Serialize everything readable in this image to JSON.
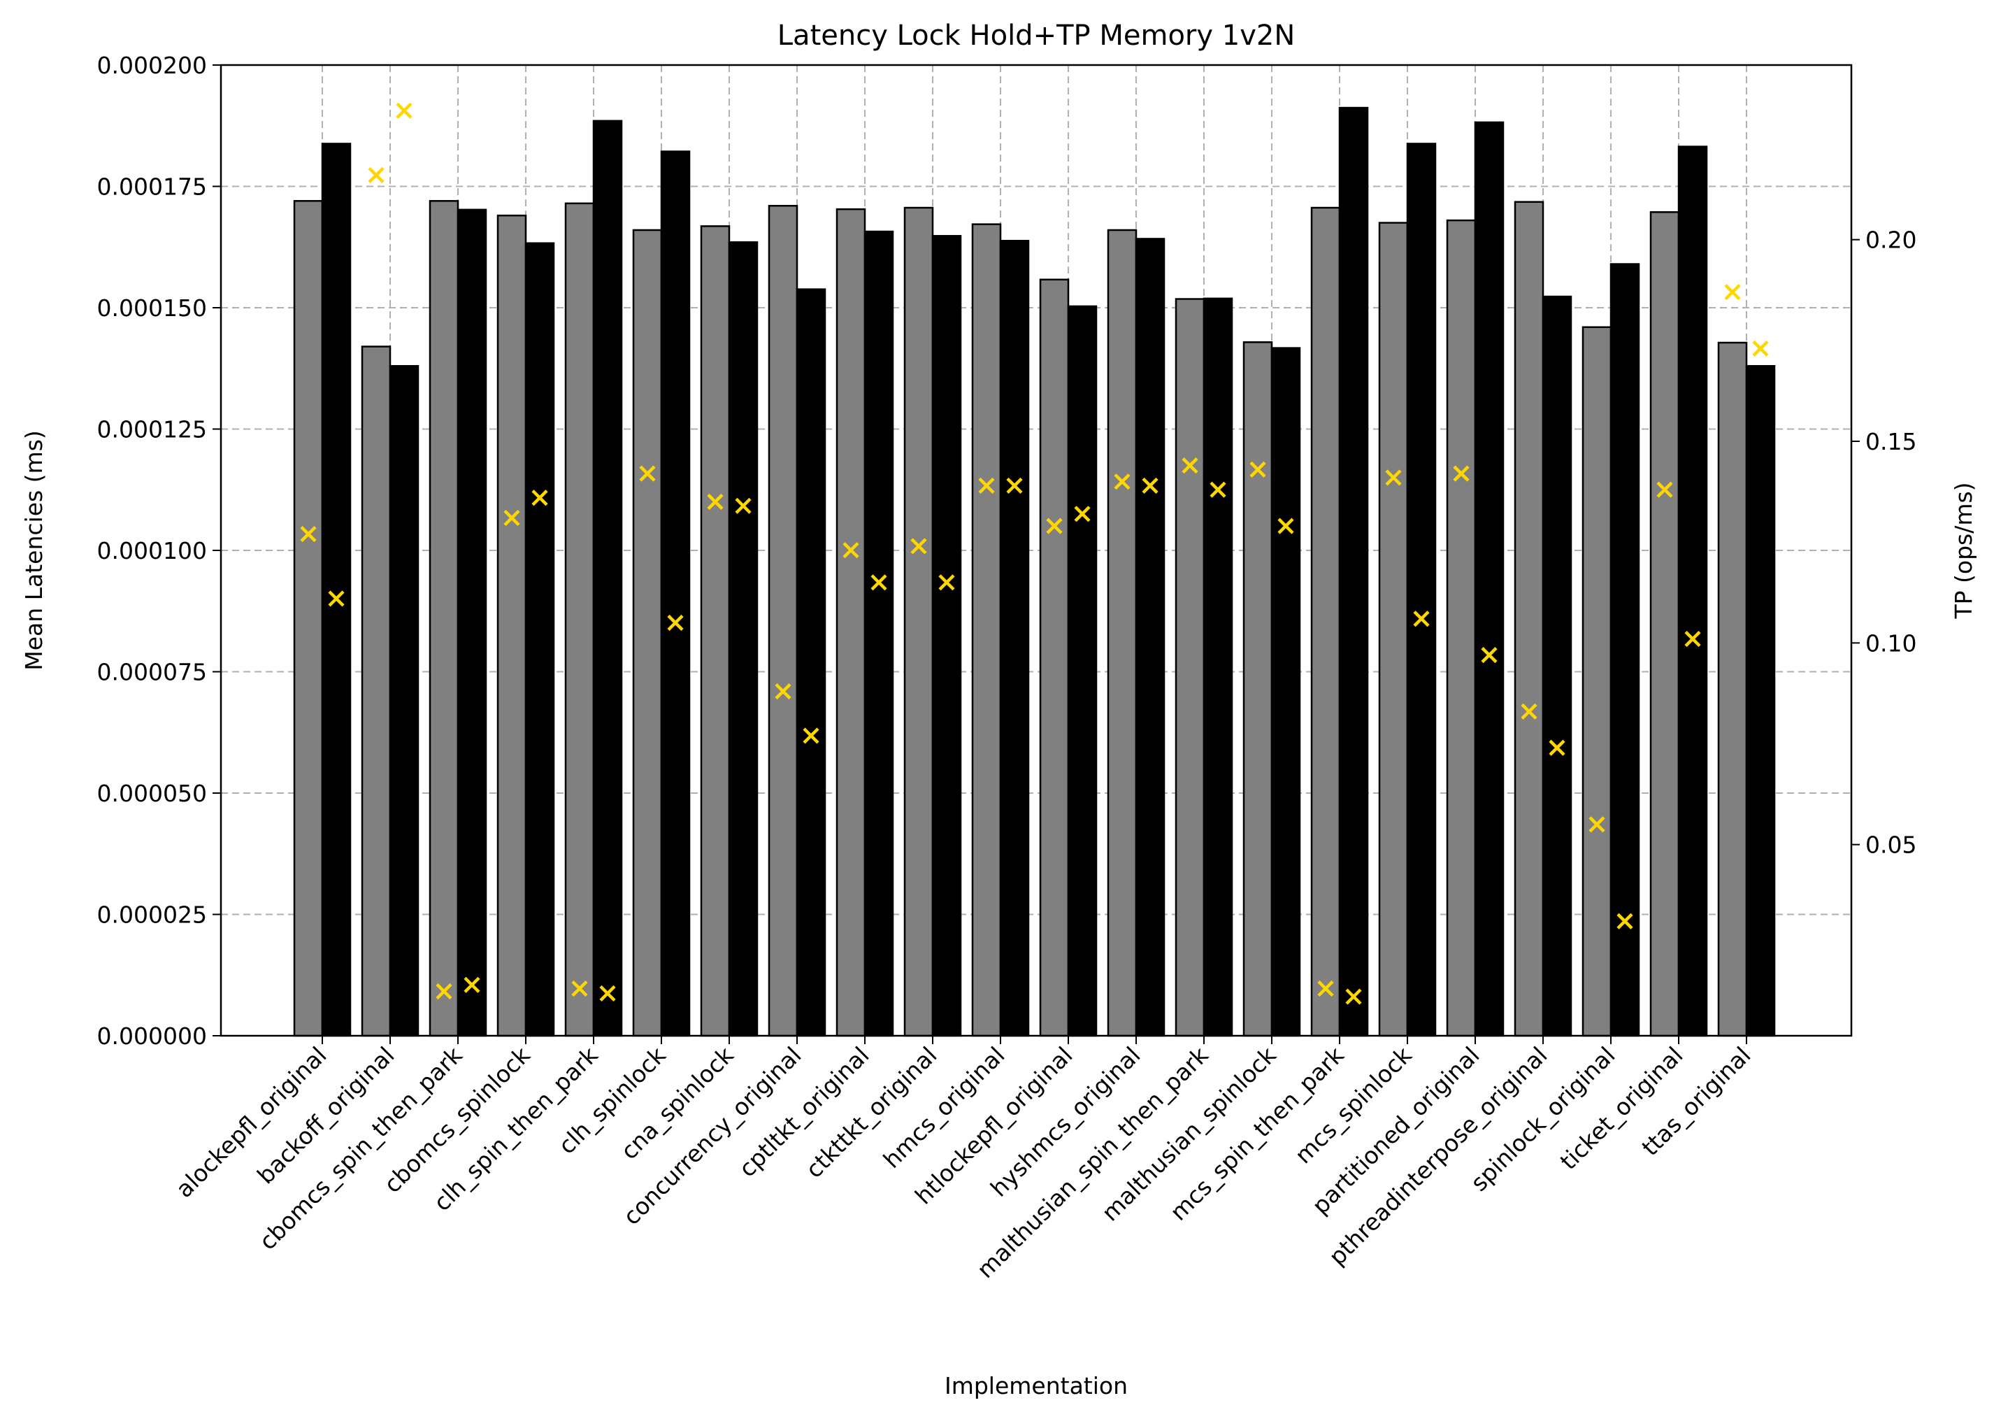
{
  "chart_data": {
    "type": "bar",
    "title": "Latency Lock Hold+TP Memory 1v2N",
    "xlabel": "Implementation",
    "ylabel": "Mean Latencies (ms)",
    "y2label": "TP (ops/ms)",
    "ylim": [
      0,
      0.0002
    ],
    "y2lim": [
      0.0026,
      0.2433
    ],
    "yticks": [
      "0.000000",
      "0.000025",
      "0.000050",
      "0.000075",
      "0.000100",
      "0.000125",
      "0.000150",
      "0.000175",
      "0.000200"
    ],
    "y2ticks": [
      "0.05",
      "0.10",
      "0.15",
      "0.20"
    ],
    "grid": true,
    "categories": [
      "alockepfl_original",
      "backoff_original",
      "cbomcs_spin_then_park",
      "cbomcs_spinlock",
      "clh_spin_then_park",
      "clh_spinlock",
      "cna_spinlock",
      "concurrency_original",
      "cptltkt_original",
      "ctkttkt_original",
      "hmcs_original",
      "htlockepfl_original",
      "hyshmcs_original",
      "malthusian_spin_then_park",
      "malthusian_spinlock",
      "mcs_spin_then_park",
      "mcs_spinlock",
      "partitioned_original",
      "pthreadinterpose_original",
      "spinlock_original",
      "ticket_original",
      "ttas_original"
    ],
    "series": [
      {
        "kind": "bar",
        "axis": "left",
        "color": "#808080",
        "values": [
          0.000172,
          0.000142,
          0.000172,
          0.000169,
          0.0001715,
          0.000166,
          0.0001668,
          0.000171,
          0.0001703,
          0.0001706,
          0.0001672,
          0.0001558,
          0.000166,
          0.0001518,
          0.0001429,
          0.0001706,
          0.0001675,
          0.000168,
          0.0001718,
          0.000146,
          0.0001697,
          0.0001428
        ]
      },
      {
        "kind": "bar",
        "axis": "left",
        "color": "#000000",
        "values": [
          0.0001838,
          0.000138,
          0.0001702,
          0.0001633,
          0.0001885,
          0.0001822,
          0.0001635,
          0.0001538,
          0.0001657,
          0.0001648,
          0.0001638,
          0.0001503,
          0.0001642,
          0.0001519,
          0.0001417,
          0.0001912,
          0.0001838,
          0.0001882,
          0.0001523,
          0.000159,
          0.0001832,
          0.000138
        ]
      },
      {
        "kind": "scatter",
        "axis": "right",
        "color": "#FFD700",
        "values": [
          0.127,
          0.216,
          0.0136,
          0.131,
          0.0143,
          0.142,
          0.135,
          0.088,
          0.123,
          0.124,
          0.139,
          0.129,
          0.14,
          0.144,
          0.143,
          0.0143,
          0.141,
          0.142,
          0.083,
          0.055,
          0.138,
          0.187
        ]
      },
      {
        "kind": "scatter",
        "axis": "right",
        "color": "#FFD700",
        "values": [
          0.111,
          0.232,
          0.0152,
          0.136,
          0.0131,
          0.105,
          0.134,
          0.077,
          0.115,
          0.115,
          0.139,
          0.132,
          0.139,
          0.138,
          0.129,
          0.0123,
          0.106,
          0.097,
          0.074,
          0.031,
          0.101,
          0.173
        ]
      }
    ]
  }
}
